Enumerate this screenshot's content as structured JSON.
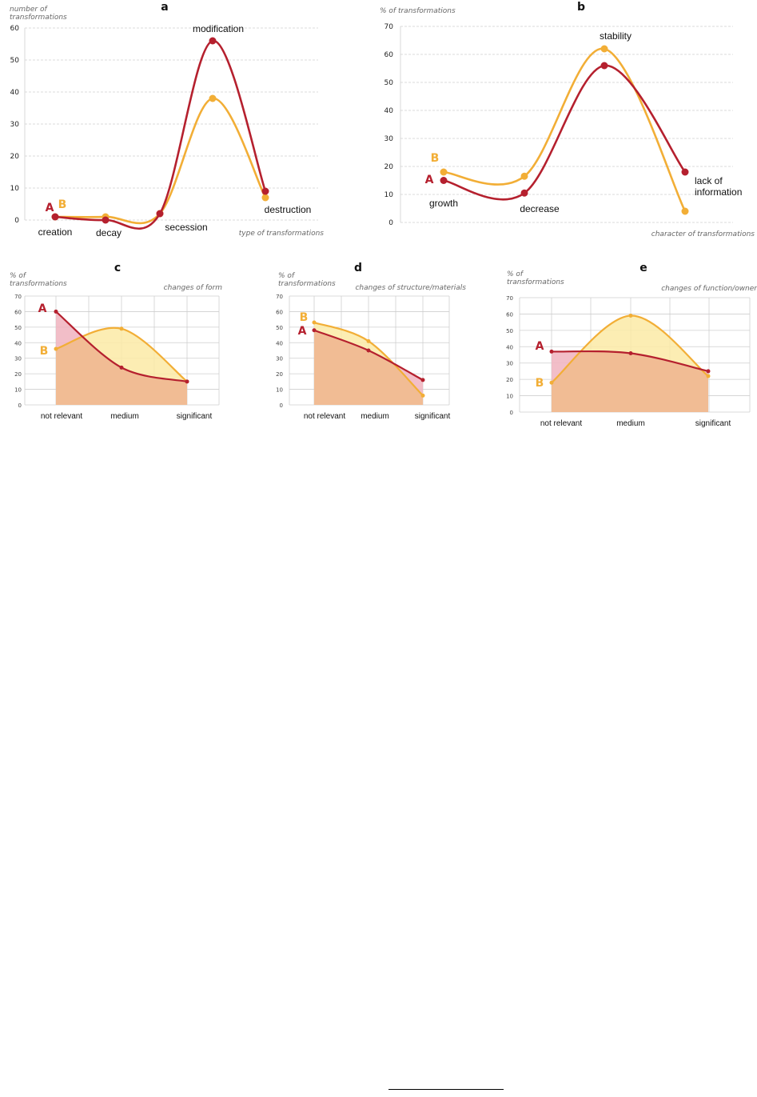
{
  "colors": {
    "A": "#b5202e",
    "B": "#f2ae36",
    "grid": "#cfcfcf",
    "fillA": "#f0b3be",
    "fillB": "#fbeaa6",
    "fillBoth": "#f1bc94"
  },
  "chart_data": [
    {
      "id": "a",
      "type": "line",
      "panel_label": "a",
      "ylabel": "number of transformations",
      "xlabel": "type of transformations",
      "ylim": [
        0,
        60
      ],
      "yticks": [
        0,
        10,
        20,
        30,
        40,
        50,
        60
      ],
      "grid": true,
      "categories": [
        "creation",
        "decay",
        "secession",
        "modification",
        "destruction"
      ],
      "series": [
        {
          "name": "A",
          "values": [
            1,
            0,
            2,
            56,
            9
          ]
        },
        {
          "name": "B",
          "values": [
            1,
            1,
            2,
            38,
            7
          ]
        }
      ]
    },
    {
      "id": "b",
      "type": "line",
      "panel_label": "b",
      "ylabel": "% of transformations",
      "xlabel": "character of transformations",
      "ylim": [
        0,
        70
      ],
      "yticks": [
        0,
        10,
        20,
        30,
        40,
        50,
        60,
        70
      ],
      "grid": true,
      "categories": [
        "growth",
        "decrease",
        "stability",
        "lack of information"
      ],
      "series": [
        {
          "name": "A",
          "values": [
            15,
            10.5,
            56,
            18
          ]
        },
        {
          "name": "B",
          "values": [
            18,
            16.5,
            62,
            4
          ]
        }
      ]
    },
    {
      "id": "c",
      "type": "area",
      "panel_label": "c",
      "ylabel": "% of transformations",
      "xlabel": "changes of form",
      "ylim": [
        0,
        70
      ],
      "yticks": [
        0,
        10,
        20,
        30,
        40,
        50,
        60,
        70
      ],
      "grid": true,
      "categories": [
        "not relevant",
        "medium",
        "significant"
      ],
      "series": [
        {
          "name": "A",
          "values": [
            60,
            24,
            15
          ]
        },
        {
          "name": "B",
          "values": [
            36,
            49,
            15
          ]
        }
      ]
    },
    {
      "id": "d",
      "type": "area",
      "panel_label": "d",
      "ylabel": "% of transformations",
      "xlabel": "changes of structure/materials",
      "ylim": [
        0,
        70
      ],
      "yticks": [
        0,
        10,
        20,
        30,
        40,
        50,
        60,
        70
      ],
      "grid": true,
      "categories": [
        "not relevant",
        "medium",
        "significant"
      ],
      "series": [
        {
          "name": "A",
          "values": [
            48,
            35,
            16
          ]
        },
        {
          "name": "B",
          "values": [
            53,
            41,
            6
          ]
        }
      ]
    },
    {
      "id": "e",
      "type": "area",
      "panel_label": "e",
      "ylabel": "% of transformations",
      "xlabel": "changes of function/owner",
      "ylim": [
        0,
        70
      ],
      "yticks": [
        0,
        10,
        20,
        30,
        40,
        50,
        60,
        70
      ],
      "grid": true,
      "categories": [
        "not relevant",
        "medium",
        "significant"
      ],
      "series": [
        {
          "name": "A",
          "values": [
            37,
            36,
            25
          ]
        },
        {
          "name": "B",
          "values": [
            18,
            59,
            22
          ]
        }
      ]
    }
  ]
}
